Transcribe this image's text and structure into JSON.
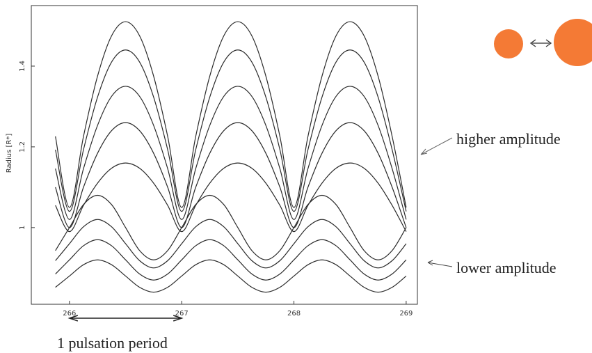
{
  "chart_data": {
    "type": "line",
    "y_label": "Radius [R*]",
    "annotations": [
      "higher amplitude",
      "lower amplitude",
      "1 pulsation period"
    ],
    "x": [
      265.875,
      266,
      266.125,
      266.25,
      266.375,
      266.5,
      266.625,
      266.75,
      266.875,
      267,
      267.125,
      267.25,
      267.375,
      267.5,
      267.625,
      267.75,
      267.875,
      268,
      268.125,
      268.25,
      268.375,
      268.5,
      268.625,
      268.75,
      268.875,
      269
    ],
    "series": [
      {
        "color": "#2a2a2a",
        "values": [
          1.226,
          1.05,
          1.226,
          1.375,
          1.475,
          1.51,
          1.475,
          1.375,
          1.226,
          1.05,
          1.226,
          1.375,
          1.475,
          1.51,
          1.475,
          1.375,
          1.226,
          1.05,
          1.226,
          1.375,
          1.475,
          1.51,
          1.475,
          1.375,
          1.226,
          1.05
        ]
      },
      {
        "color": "#2a2a2a",
        "values": [
          1.193,
          1.04,
          1.193,
          1.323,
          1.41,
          1.44,
          1.41,
          1.323,
          1.193,
          1.04,
          1.193,
          1.323,
          1.41,
          1.44,
          1.41,
          1.323,
          1.193,
          1.04,
          1.193,
          1.323,
          1.41,
          1.44,
          1.41,
          1.323,
          1.193,
          1.04
        ]
      },
      {
        "color": "#2a2a2a",
        "values": [
          1.146,
          1.02,
          1.146,
          1.253,
          1.325,
          1.35,
          1.325,
          1.253,
          1.146,
          1.02,
          1.146,
          1.253,
          1.325,
          1.35,
          1.325,
          1.253,
          1.146,
          1.02,
          1.146,
          1.253,
          1.325,
          1.35,
          1.325,
          1.253,
          1.146,
          1.02
        ]
      },
      {
        "color": "#2a2a2a",
        "values": [
          1.1,
          1.0,
          1.1,
          1.184,
          1.24,
          1.26,
          1.24,
          1.184,
          1.1,
          1.0,
          1.1,
          1.184,
          1.24,
          1.26,
          1.24,
          1.184,
          1.1,
          1.0,
          1.1,
          1.184,
          1.24,
          1.26,
          1.24,
          1.184,
          1.1,
          1.0
        ]
      },
      {
        "color": "#2a2a2a",
        "values": [
          1.055,
          0.99,
          1.055,
          1.11,
          1.147,
          1.16,
          1.147,
          1.11,
          1.055,
          0.99,
          1.055,
          1.11,
          1.147,
          1.16,
          1.147,
          1.11,
          1.055,
          0.99,
          1.055,
          1.11,
          1.147,
          1.16,
          1.147,
          1.11,
          1.055,
          0.99
        ]
      },
      {
        "color": "#2a2a2a",
        "values": [
          0.943,
          1.0,
          1.057,
          1.08,
          1.057,
          1.0,
          0.943,
          0.92,
          0.943,
          1.0,
          1.057,
          1.08,
          1.057,
          1.0,
          0.943,
          0.92,
          0.943,
          1.0,
          1.057,
          1.08,
          1.057,
          1.0,
          0.943,
          0.92,
          0.943,
          1.0
        ]
      },
      {
        "color": "#2a2a2a",
        "values": [
          0.918,
          0.96,
          1.002,
          1.02,
          1.002,
          0.96,
          0.918,
          0.9,
          0.918,
          0.96,
          1.002,
          1.02,
          1.002,
          0.96,
          0.918,
          0.9,
          0.918,
          0.96,
          1.002,
          1.02,
          1.002,
          0.96,
          0.918,
          0.9,
          0.918,
          0.96
        ]
      },
      {
        "color": "#2a2a2a",
        "values": [
          0.885,
          0.92,
          0.955,
          0.97,
          0.955,
          0.92,
          0.885,
          0.87,
          0.885,
          0.92,
          0.955,
          0.97,
          0.955,
          0.92,
          0.885,
          0.87,
          0.885,
          0.92,
          0.955,
          0.97,
          0.955,
          0.92,
          0.885,
          0.87,
          0.885,
          0.92
        ]
      },
      {
        "color": "#2a2a2a",
        "values": [
          0.852,
          0.88,
          0.908,
          0.92,
          0.908,
          0.88,
          0.852,
          0.84,
          0.852,
          0.88,
          0.908,
          0.92,
          0.908,
          0.88,
          0.852,
          0.84,
          0.852,
          0.88,
          0.908,
          0.92,
          0.908,
          0.88,
          0.852,
          0.84,
          0.852,
          0.88
        ]
      }
    ],
    "xlim": [
      265.66,
      269.1
    ],
    "ylim": [
      0.81,
      1.55
    ],
    "xticks": [
      266,
      267,
      268,
      269
    ],
    "yticks": [
      1,
      1.2,
      1.4
    ]
  }
}
